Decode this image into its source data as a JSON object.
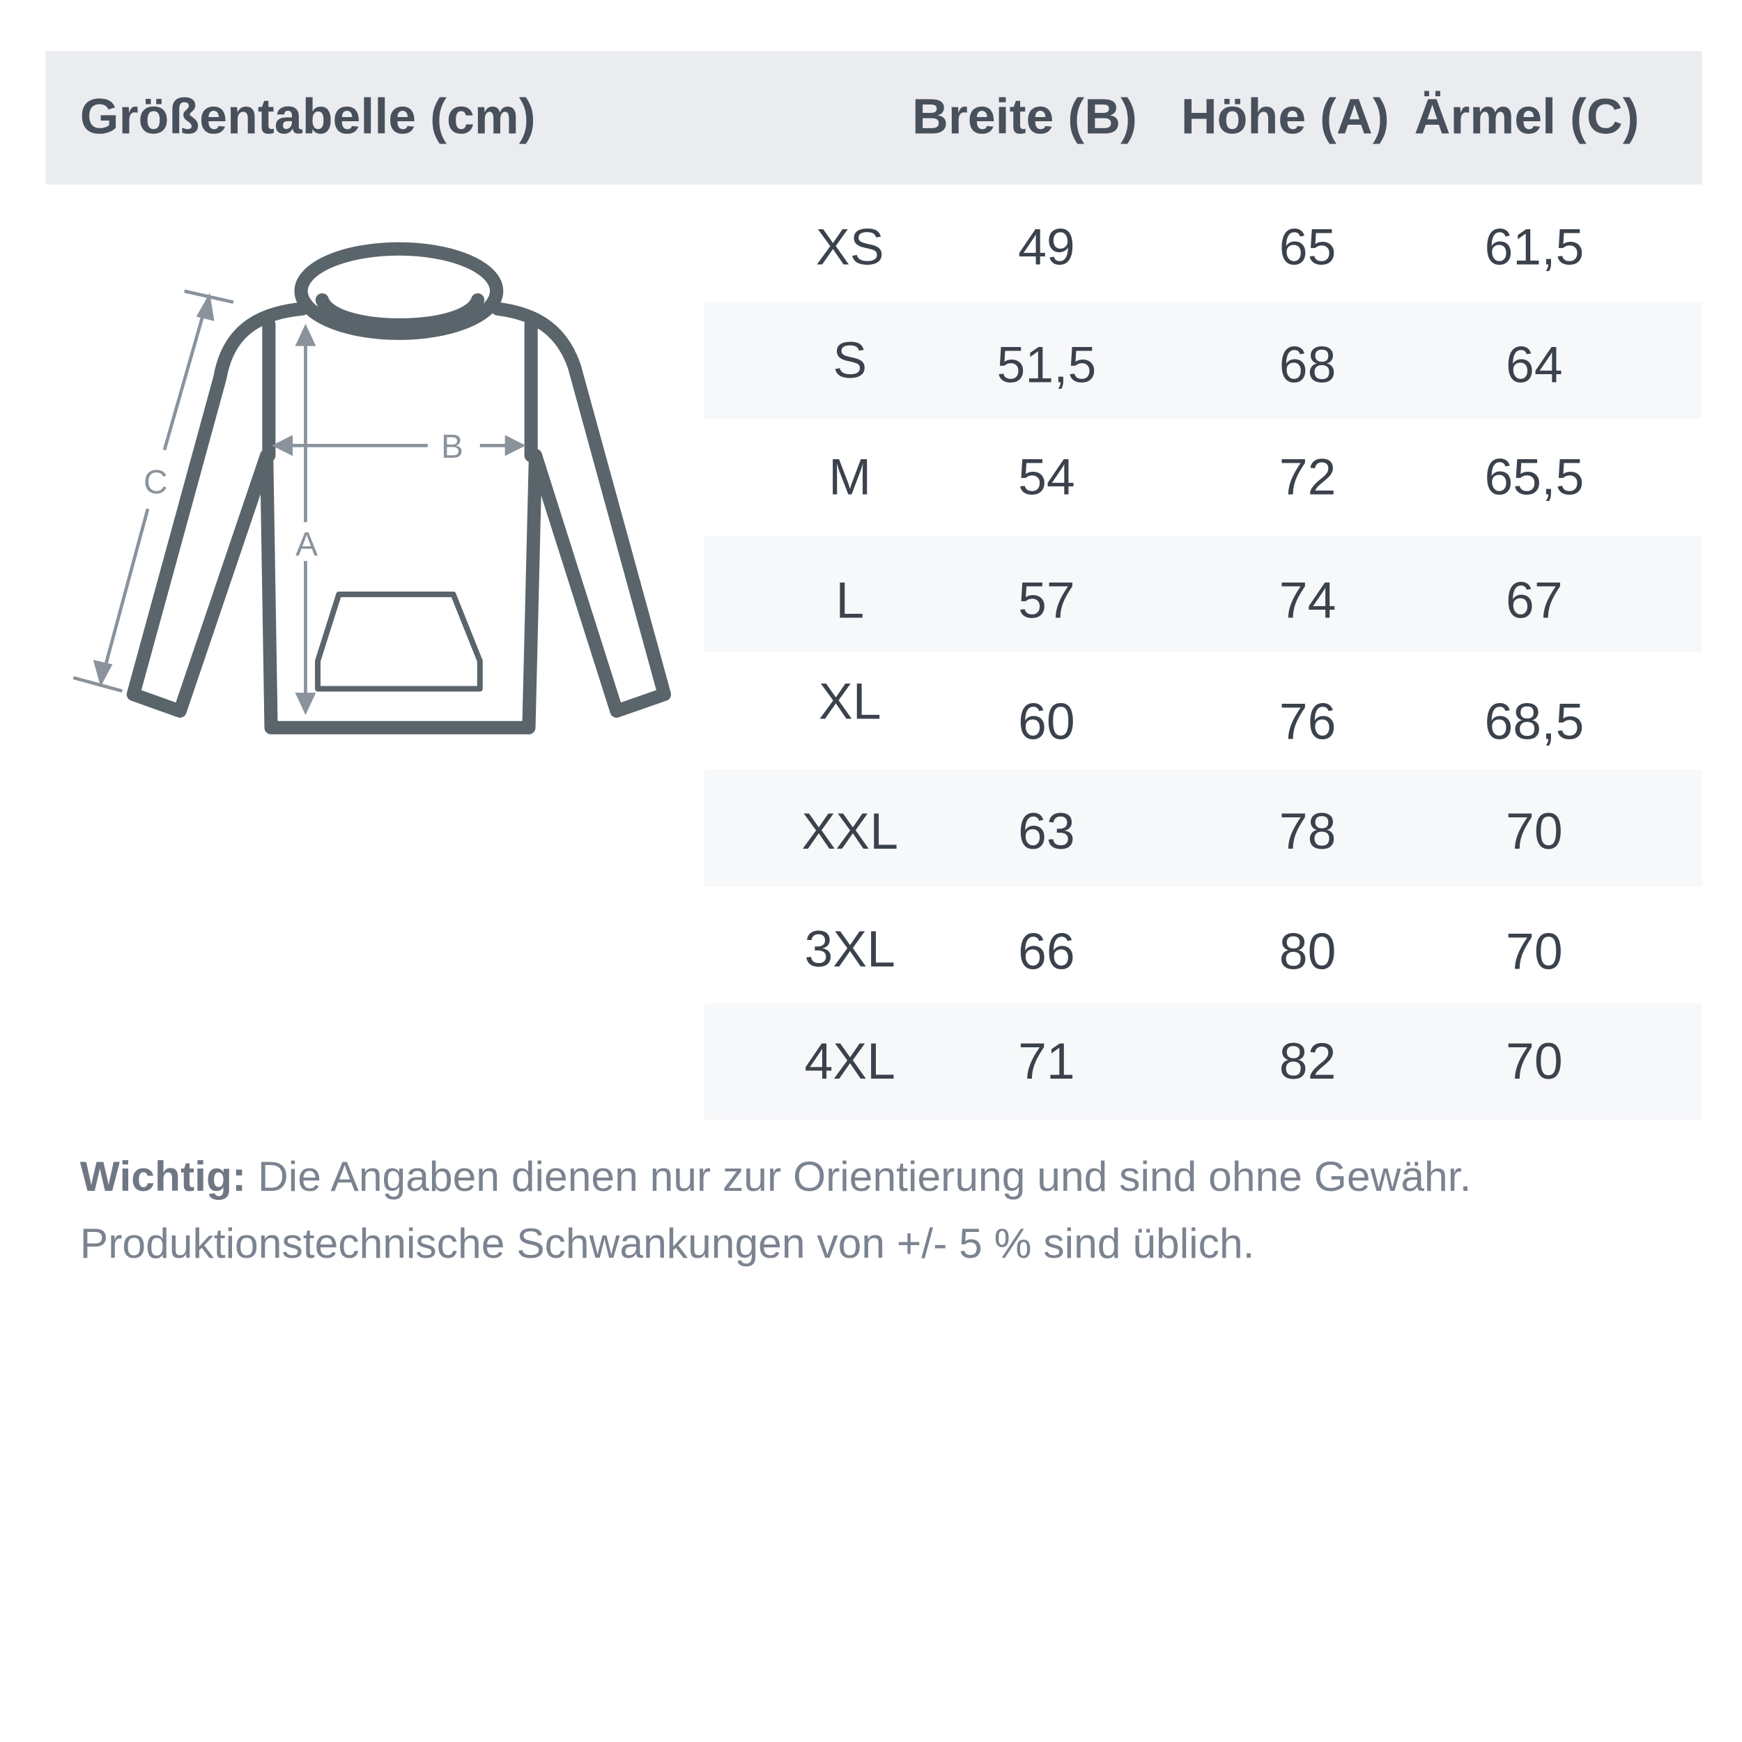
{
  "header": {
    "title": "Größentabelle (cm)",
    "columns": [
      "Breite (B)",
      "Höhe (A)",
      "Ärmel (C)"
    ]
  },
  "diagram": {
    "labels": {
      "width": "B",
      "height": "A",
      "sleeve": "C"
    }
  },
  "rows": [
    {
      "size": "XS",
      "breite": "49",
      "hoehe": "65",
      "aermel": "61,5"
    },
    {
      "size": "S",
      "breite": "51,5",
      "hoehe": "68",
      "aermel": "64"
    },
    {
      "size": "M",
      "breite": "54",
      "hoehe": "72",
      "aermel": "65,5"
    },
    {
      "size": "L",
      "breite": "57",
      "hoehe": "74",
      "aermel": "67"
    },
    {
      "size": "XL",
      "breite": "60",
      "hoehe": "76",
      "aermel": "68,5"
    },
    {
      "size": "XXL",
      "breite": "63",
      "hoehe": "78",
      "aermel": "70"
    },
    {
      "size": "3XL",
      "breite": "66",
      "hoehe": "80",
      "aermel": "70"
    },
    {
      "size": "4XL",
      "breite": "71",
      "hoehe": "82",
      "aermel": "70"
    }
  ],
  "note": {
    "label": "Wichtig:",
    "line1": " Die Angaben dienen nur zur Orientierung und sind ohne Gewähr.",
    "line2": "Produktionstechnische Schwankungen von +/- 5 % sind üblich."
  },
  "colors": {
    "header_bg": "#eaecef",
    "row_shade": "#f7f8fa",
    "garment": "#5a646b",
    "measure": "#8a939c"
  }
}
